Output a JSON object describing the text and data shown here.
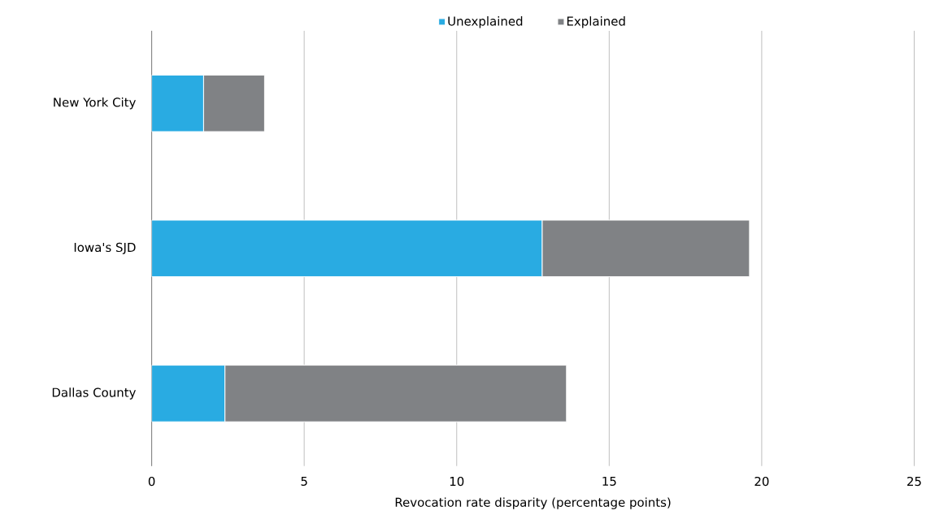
{
  "chart_data": {
    "type": "bar",
    "orientation": "horizontal",
    "stacked": true,
    "categories": [
      "New York City",
      "Iowa's SJD",
      "Dallas County"
    ],
    "series": [
      {
        "name": "Unexplained",
        "color": "#29abe2",
        "values": [
          1.7,
          12.8,
          2.4
        ]
      },
      {
        "name": "Explained",
        "color": "#808285",
        "values": [
          2.0,
          6.8,
          11.2
        ]
      }
    ],
    "xlabel": "Revocation rate disparity (percentage points)",
    "xlim": [
      0,
      25
    ],
    "xticks": [
      0,
      5,
      10,
      15,
      20,
      25
    ],
    "grid": "x",
    "legend": "top"
  }
}
